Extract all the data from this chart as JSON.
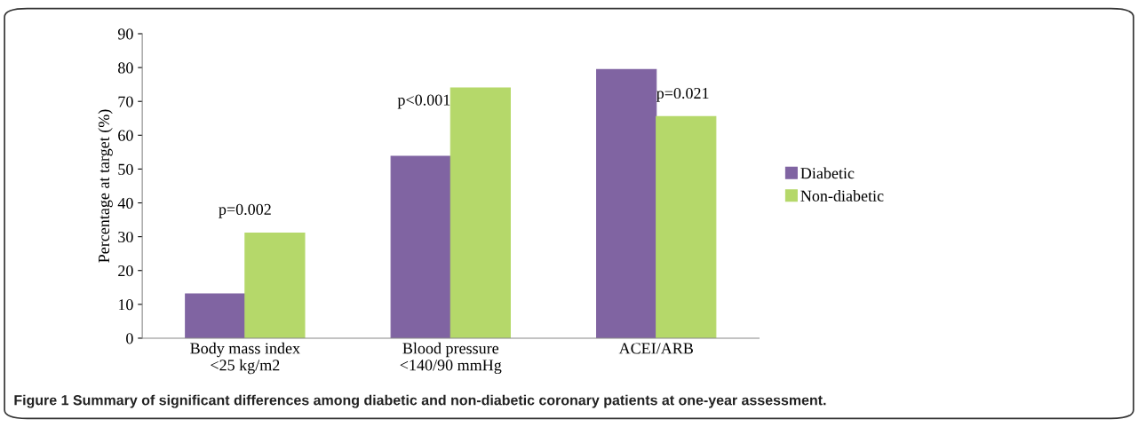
{
  "chart_data": {
    "type": "bar",
    "ylabel": "Percentage at target (%)",
    "categories": [
      "Body mass index\n<25 kg/m2",
      "Blood pressure\n<140/90 mmHg",
      "ACEI/ARB"
    ],
    "series": [
      {
        "name": "Diabetic",
        "color": "#8064a2",
        "values": [
          13.1,
          53.8,
          79.4
        ]
      },
      {
        "name": "Non-diabetic",
        "color": "#b5d86a",
        "values": [
          31.1,
          74.0,
          65.5
        ]
      }
    ],
    "ylim": [
      0,
      90
    ],
    "yticks": [
      0,
      10,
      20,
      30,
      40,
      50,
      60,
      70,
      80,
      90
    ],
    "grid": false,
    "legend": "right",
    "annotations": [
      {
        "text": "p=0.002",
        "x": "Body mass index\n<25 kg/m2",
        "y": 31.1
      },
      {
        "text": "p<0.001",
        "x": "Blood pressure\n<140/90 mmHg",
        "y": 70
      },
      {
        "text": "p=0.021",
        "x": "ACEI/ARB",
        "y": 72
      },
      "Figure 1 Summary of significant differences among diabetic and non-diabetic coronary patients at one-year assessment."
    ]
  }
}
